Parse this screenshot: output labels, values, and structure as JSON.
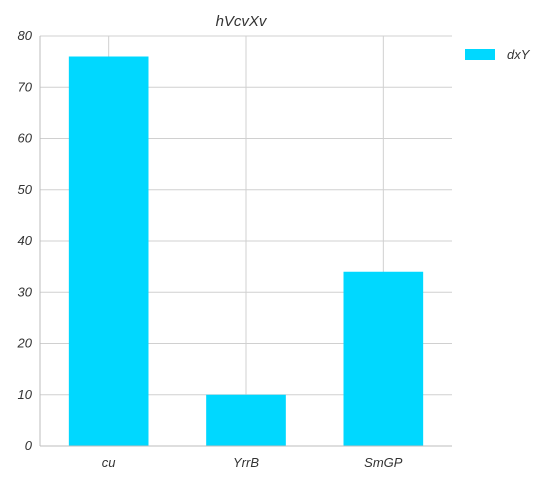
{
  "chart_data": {
    "type": "bar",
    "title": "hVcvXv",
    "xlabel": "",
    "ylabel": "",
    "categories": [
      "cu",
      "YrrB",
      "SmGP"
    ],
    "series": [
      {
        "name": "dxY",
        "values": [
          76,
          10,
          34
        ],
        "color": "#00d8ff"
      }
    ],
    "ylim": [
      0,
      80
    ],
    "yticks": [
      0,
      10,
      20,
      30,
      40,
      50,
      60,
      70,
      80
    ],
    "grid": true,
    "legend_position": "right"
  }
}
